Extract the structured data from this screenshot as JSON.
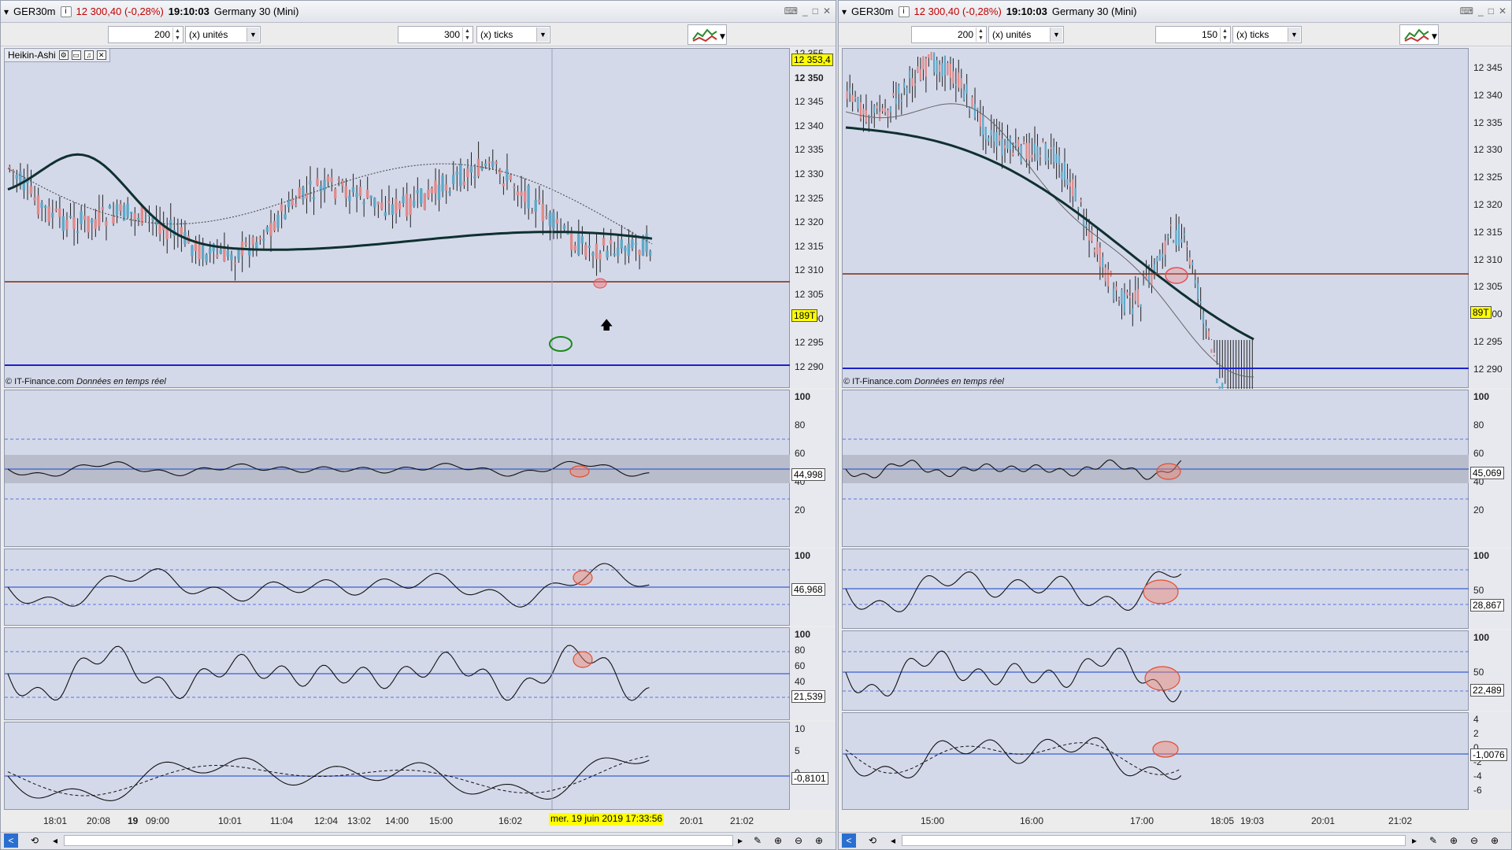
{
  "left": {
    "title": {
      "symbol": "GER30m",
      "price": "12 300,40 (-0,28%)",
      "time": "19:10:03",
      "instrument": "Germany 30 (Mini)"
    },
    "toolbar": {
      "units_value": "200",
      "units_label": "(x) unités",
      "ticks_value": "300",
      "ticks_label": "(x) ticks"
    },
    "indicator_name": "Heikin-Ashi",
    "price_axis": [
      "12 355",
      "12 350",
      "12 345",
      "12 340",
      "12 335",
      "12 330",
      "12 325",
      "12 320",
      "12 315",
      "12 310",
      "12 305",
      "12 300",
      "12 295",
      "12 290"
    ],
    "price_tag_top": "12 353,4",
    "price_tag_cur": "189T",
    "credit": "© IT-Finance.com",
    "credit_rt": "Données en temps réel",
    "p1_axis": [
      "100",
      "80",
      "60",
      "40",
      "20"
    ],
    "p1_value": "44,998",
    "p2_axis": [
      "100"
    ],
    "p2_value": "46,968",
    "p3_axis": [
      "100",
      "80",
      "60",
      "40",
      "20"
    ],
    "p3_value": "21,539",
    "p4_axis": [
      "10",
      "5",
      "0"
    ],
    "p4_value": "-0,8101",
    "x_axis": [
      "18:01",
      "20:08",
      "19",
      "09:00",
      "10:01",
      "11:04",
      "12:04",
      "13:02",
      "14:00",
      "15:00",
      "16:02",
      "20:01",
      "21:02"
    ],
    "cursor_date": "mer. 19 juin 2019 17:33:56"
  },
  "right": {
    "title": {
      "symbol": "GER30m",
      "price": "12 300,40 (-0,28%)",
      "time": "19:10:03",
      "instrument": "Germany 30 (Mini)"
    },
    "toolbar": {
      "units_value": "200",
      "units_label": "(x) unités",
      "ticks_value": "150",
      "ticks_label": "(x) ticks"
    },
    "price_axis": [
      "12 345",
      "12 340",
      "12 335",
      "12 330",
      "12 325",
      "12 320",
      "12 315",
      "12 310",
      "12 305",
      "12 300",
      "12 295",
      "12 290"
    ],
    "price_tag_cur": "89T",
    "credit": "© IT-Finance.com",
    "credit_rt": "Données en temps réel",
    "p1_axis": [
      "100",
      "80",
      "60",
      "40",
      "20"
    ],
    "p1_value": "45,069",
    "p2_axis": [
      "100",
      "50"
    ],
    "p2_value": "28,867",
    "p3_axis": [
      "100",
      "50"
    ],
    "p3_value": "22,489",
    "p4_axis": [
      "4",
      "2",
      "0",
      "-2",
      "-4",
      "-6"
    ],
    "p4_value": "-1,0076",
    "x_axis": [
      "15:00",
      "16:00",
      "17:00",
      "18:05",
      "19:03",
      "20:01",
      "21:02"
    ]
  },
  "colors": {
    "bull": "#5fa8c8",
    "bear": "#e08a8a",
    "ma_dark": "#0f3030",
    "support": "#1a22c8",
    "resistance": "#7a2a10",
    "band": "#b8bccb"
  }
}
